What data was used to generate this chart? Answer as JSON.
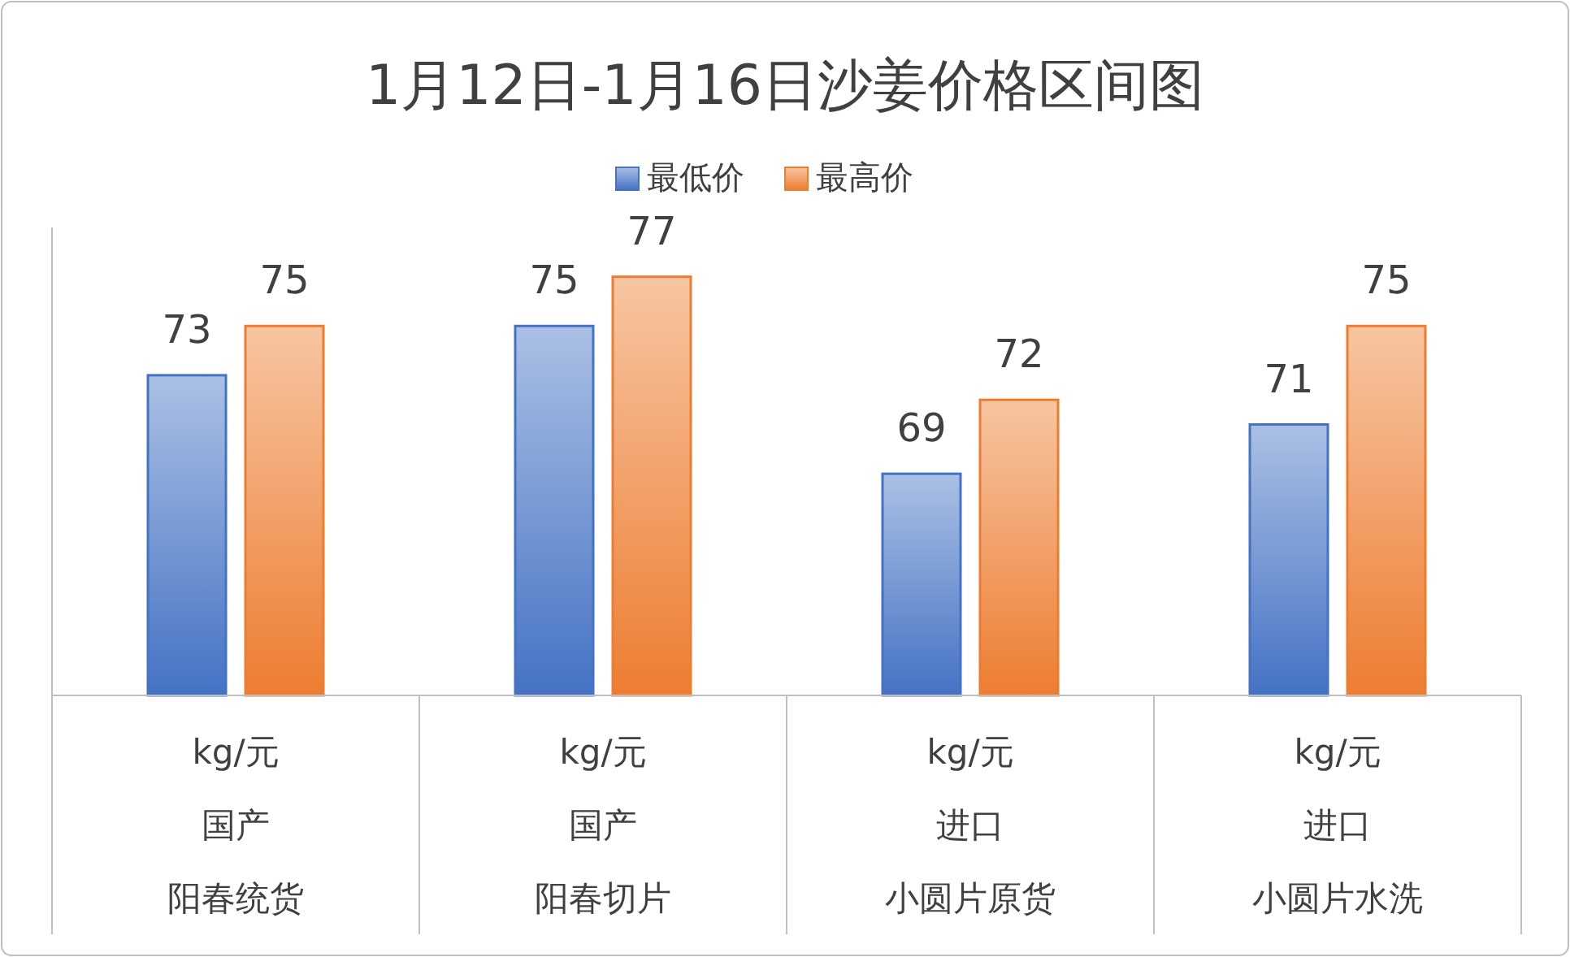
{
  "chart_data": {
    "type": "bar",
    "title": "1月12日-1月16日沙姜价格区间图",
    "categories": [
      "阳春统货",
      "阳春切片",
      "小圆片原货",
      "小圆片水洗"
    ],
    "series": [
      {
        "name": "最低价",
        "color": "#4472c4",
        "values": [
          73,
          75,
          69,
          71
        ]
      },
      {
        "name": "最高价",
        "color": "#ed7d31",
        "values": [
          75,
          77,
          72,
          75
        ]
      }
    ],
    "annotations": [
      "kg/元",
      "国产",
      "kg/元",
      "国产",
      "kg/元",
      "进口",
      "kg/元",
      "进口"
    ],
    "ylim": [
      60,
      79
    ],
    "data_labels": true,
    "legend": "top"
  }
}
